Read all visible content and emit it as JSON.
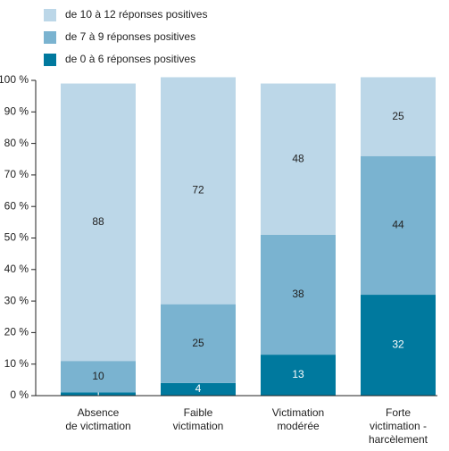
{
  "chart_data": {
    "type": "stacked_bar",
    "categories": [
      [
        "Absence",
        "de victimation"
      ],
      [
        "Faible",
        "victimation"
      ],
      [
        "Victimation",
        "modérée"
      ],
      [
        "Forte",
        "victimation -",
        "harcèlement"
      ]
    ],
    "series": [
      {
        "name": "de 0 à 6 réponses positives",
        "color": "#00799e",
        "label_color": "#ffffff",
        "values": [
          1,
          4,
          13,
          32
        ]
      },
      {
        "name": "de 7 à 9 réponses positives",
        "color": "#7ab3d0",
        "label_color": "#222222",
        "values": [
          10,
          25,
          38,
          44
        ]
      },
      {
        "name": "de 10 à 12 réponses positives",
        "color": "#bcd7e8",
        "label_color": "#222222",
        "values": [
          88,
          72,
          48,
          25
        ]
      }
    ],
    "ylim": [
      0,
      100
    ],
    "yticks": [
      {
        "value": 0,
        "label": "0 %"
      },
      {
        "value": 10,
        "label": "10 %"
      },
      {
        "value": 20,
        "label": "20 %"
      },
      {
        "value": 30,
        "label": "30 %"
      },
      {
        "value": 40,
        "label": "40 %"
      },
      {
        "value": 50,
        "label": "50 %"
      },
      {
        "value": 60,
        "label": "60 %"
      },
      {
        "value": 70,
        "label": "70 %"
      },
      {
        "value": 80,
        "label": "80 %"
      },
      {
        "value": 90,
        "label": "90 %"
      },
      {
        "value": 100,
        "label": "100 %"
      }
    ],
    "grid": false
  }
}
